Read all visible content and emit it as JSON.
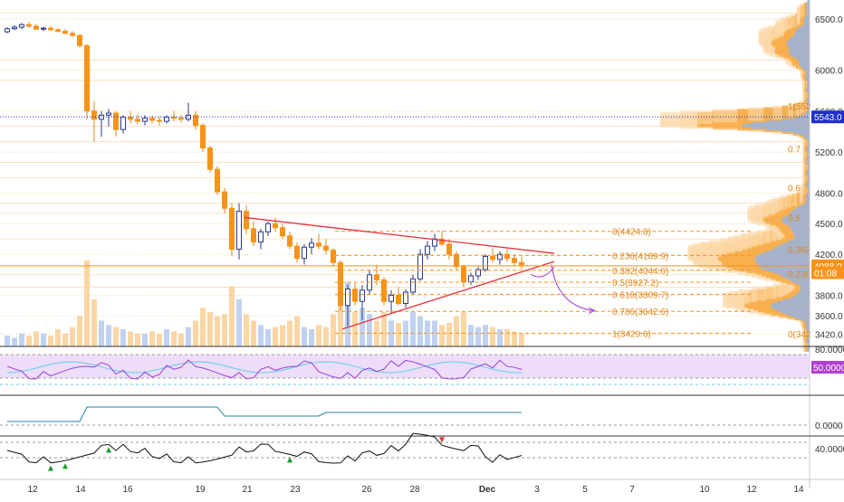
{
  "chart_data": [
    {
      "type": "candlestick",
      "ylim": [
        3300,
        6650
      ],
      "y_ticks": [
        "6500.0",
        "6000.0",
        "5600.0",
        "5200.0",
        "4800.0",
        "4500.0",
        "4200.0",
        "3800.0",
        "3600.0",
        "3420.0"
      ],
      "x_ticks": [
        "12",
        "14",
        "16",
        "19",
        "21",
        "23",
        "26",
        "28",
        "Dec",
        "3",
        "5",
        "7",
        "10",
        "12",
        "14"
      ],
      "price_badges": [
        {
          "label": "5543.0",
          "value": 5543,
          "color": "#1e2ecc"
        },
        {
          "label": "4088.0",
          "value": 4088,
          "color": "#f7931a"
        },
        {
          "label": "01:08",
          "value": 4020,
          "color": "#f7931a"
        }
      ],
      "fib_levels": [
        {
          "label": "0(4424.8)",
          "value": 4424.8
        },
        {
          "label": "0.236(4189.9)",
          "value": 4189.9
        },
        {
          "label": "0.382(4044.6)",
          "value": 4044.6
        },
        {
          "label": "0.5(3927.2)",
          "value": 3927.2
        },
        {
          "label": "0.618(3809.7)",
          "value": 3809.7
        },
        {
          "label": "0.786(3642.6)",
          "value": 3642.6
        },
        {
          "label": "1(3429.6)",
          "value": 3429.6
        }
      ],
      "profile_labels": [
        {
          "label": "1(552",
          "value": 5650
        },
        {
          "label": "0.7",
          "value": 5230
        },
        {
          "label": "0.6",
          "value": 4850
        },
        {
          "label": "0.5",
          "value": 4560
        },
        {
          "label": "0.382",
          "value": 4250
        },
        {
          "label": "0.236",
          "value": 4010
        },
        {
          "label": "0(342",
          "value": 3425
        }
      ],
      "candles": [
        [
          6375,
          6420,
          6360,
          6405
        ],
        [
          6405,
          6440,
          6390,
          6420
        ],
        [
          6420,
          6460,
          6400,
          6445
        ],
        [
          6445,
          6470,
          6410,
          6430
        ],
        [
          6430,
          6450,
          6390,
          6400
        ],
        [
          6400,
          6425,
          6380,
          6410
        ],
        [
          6410,
          6430,
          6385,
          6395
        ],
        [
          6395,
          6410,
          6370,
          6380
        ],
        [
          6380,
          6400,
          6350,
          6360
        ],
        [
          6360,
          6380,
          6320,
          6340
        ],
        [
          6340,
          6350,
          6220,
          6240
        ],
        [
          6240,
          6250,
          5520,
          5600
        ],
        [
          5600,
          5700,
          5300,
          5520
        ],
        [
          5520,
          5600,
          5350,
          5560
        ],
        [
          5560,
          5620,
          5450,
          5580
        ],
        [
          5580,
          5600,
          5350,
          5420
        ],
        [
          5420,
          5560,
          5380,
          5540
        ],
        [
          5540,
          5600,
          5480,
          5520
        ],
        [
          5520,
          5570,
          5470,
          5500
        ],
        [
          5500,
          5560,
          5460,
          5530
        ],
        [
          5530,
          5560,
          5480,
          5510
        ],
        [
          5510,
          5550,
          5460,
          5500
        ],
        [
          5500,
          5560,
          5480,
          5540
        ],
        [
          5540,
          5600,
          5500,
          5530
        ],
        [
          5530,
          5560,
          5490,
          5520
        ],
        [
          5520,
          5680,
          5500,
          5560
        ],
        [
          5560,
          5600,
          5420,
          5460
        ],
        [
          5460,
          5480,
          5200,
          5240
        ],
        [
          5240,
          5260,
          5000,
          5030
        ],
        [
          5030,
          5060,
          4780,
          4810
        ],
        [
          4810,
          4850,
          4600,
          4650
        ],
        [
          4650,
          4700,
          4180,
          4250
        ],
        [
          4250,
          4700,
          4150,
          4620
        ],
        [
          4620,
          4680,
          4400,
          4450
        ],
        [
          4450,
          4520,
          4280,
          4320
        ],
        [
          4320,
          4450,
          4250,
          4420
        ],
        [
          4420,
          4520,
          4380,
          4500
        ],
        [
          4500,
          4560,
          4420,
          4460
        ],
        [
          4460,
          4500,
          4350,
          4380
        ],
        [
          4380,
          4420,
          4250,
          4280
        ],
        [
          4280,
          4320,
          4120,
          4160
        ],
        [
          4160,
          4300,
          4100,
          4270
        ],
        [
          4270,
          4360,
          4200,
          4310
        ],
        [
          4310,
          4400,
          4250,
          4280
        ],
        [
          4280,
          4350,
          4200,
          4240
        ],
        [
          4240,
          4260,
          4080,
          4120
        ],
        [
          4120,
          4140,
          3650,
          3700
        ],
        [
          3700,
          3900,
          3500,
          3860
        ],
        [
          3860,
          3920,
          3700,
          3740
        ],
        [
          3740,
          3900,
          3560,
          3850
        ],
        [
          3850,
          4050,
          3800,
          4000
        ],
        [
          4000,
          4100,
          3900,
          3950
        ],
        [
          3950,
          3980,
          3700,
          3740
        ],
        [
          3740,
          3850,
          3620,
          3800
        ],
        [
          3800,
          3880,
          3700,
          3720
        ],
        [
          3720,
          3860,
          3680,
          3830
        ],
        [
          3830,
          4000,
          3800,
          3960
        ],
        [
          3960,
          4250,
          3940,
          4200
        ],
        [
          4200,
          4330,
          4150,
          4280
        ],
        [
          4280,
          4400,
          4230,
          4350
        ],
        [
          4350,
          4430,
          4280,
          4300
        ],
        [
          4300,
          4350,
          4150,
          4200
        ],
        [
          4200,
          4230,
          4050,
          4080
        ],
        [
          4080,
          4100,
          3880,
          3930
        ],
        [
          3930,
          4020,
          3900,
          3990
        ],
        [
          3990,
          4080,
          3950,
          4050
        ],
        [
          4050,
          4200,
          4030,
          4180
        ],
        [
          4180,
          4260,
          4120,
          4150
        ],
        [
          4150,
          4230,
          4100,
          4200
        ],
        [
          4200,
          4250,
          4130,
          4160
        ],
        [
          4160,
          4200,
          4080,
          4120
        ],
        [
          4120,
          4180,
          4060,
          4088
        ]
      ],
      "volume": [
        5,
        4,
        6,
        5,
        7,
        6,
        5,
        8,
        6,
        9,
        14,
        40,
        22,
        12,
        10,
        9,
        8,
        7,
        6,
        6,
        7,
        6,
        8,
        7,
        6,
        9,
        12,
        18,
        16,
        14,
        15,
        28,
        22,
        15,
        12,
        10,
        8,
        9,
        10,
        12,
        14,
        9,
        8,
        10,
        9,
        15,
        38,
        30,
        16,
        18,
        15,
        12,
        16,
        12,
        11,
        12,
        16,
        14,
        12,
        12,
        10,
        11,
        14,
        16,
        10,
        9,
        10,
        9,
        8,
        8,
        7,
        6
      ],
      "rsi_panel": {
        "levels": [
          "80.0000",
          "50.0000"
        ],
        "badge": "50.0000"
      },
      "third_panel": {
        "badge": "0.0000"
      },
      "fourth_panel": {
        "levels": [
          "40.0000"
        ]
      }
    }
  ]
}
